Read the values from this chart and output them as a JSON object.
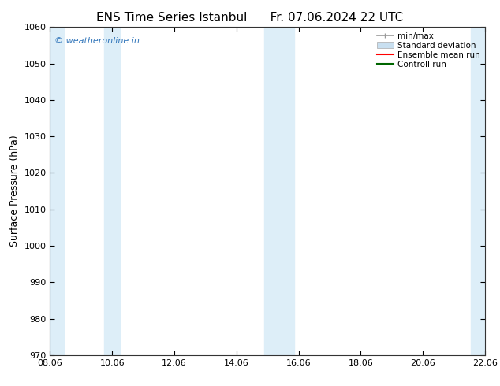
{
  "title1": "ENS Time Series Istanbul",
  "title2": "Fr. 07.06.2024 22 UTC",
  "ylabel": "Surface Pressure (hPa)",
  "xlabel_ticks": [
    "08.06",
    "10.06",
    "12.06",
    "14.06",
    "16.06",
    "18.06",
    "20.06",
    "22.06"
  ],
  "xlim": [
    0,
    14
  ],
  "ylim": [
    970,
    1060
  ],
  "yticks": [
    970,
    980,
    990,
    1000,
    1010,
    1020,
    1030,
    1040,
    1050,
    1060
  ],
  "background_color": "#ffffff",
  "plot_bg_color": "#ffffff",
  "shaded_band_color": "#ddeef8",
  "shaded_bands": [
    {
      "x_start": 0.0,
      "x_end": 0.45
    },
    {
      "x_start": 1.75,
      "x_end": 2.25
    },
    {
      "x_start": 6.9,
      "x_end": 7.85
    },
    {
      "x_start": 13.55,
      "x_end": 14.0
    }
  ],
  "watermark_text": "© weatheronline.in",
  "watermark_color": "#3377bb",
  "legend_items": [
    {
      "label": "min/max",
      "color": "#999999",
      "type": "errorbar"
    },
    {
      "label": "Standard deviation",
      "color": "#c8dff0",
      "type": "band"
    },
    {
      "label": "Ensemble mean run",
      "color": "#ff0000",
      "type": "line"
    },
    {
      "label": "Controll run",
      "color": "#006600",
      "type": "line"
    }
  ],
  "title_fontsize": 11,
  "tick_fontsize": 8,
  "ylabel_fontsize": 9,
  "legend_fontsize": 7.5
}
